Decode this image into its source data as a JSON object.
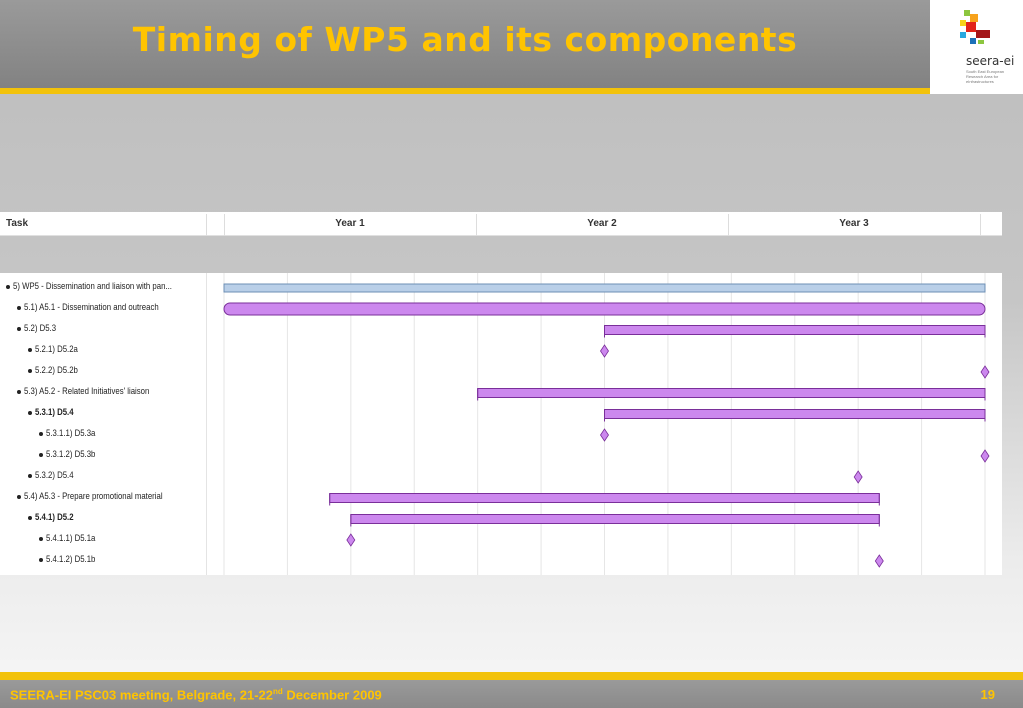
{
  "header": {
    "title": "Timing of WP5 and its components"
  },
  "logo": {
    "name": "seera-ei",
    "subtitle": "South East European Research Area for eInfrastructures"
  },
  "gantt": {
    "task_column_label": "Task",
    "years": [
      "Year 1",
      "Year 2",
      "Year 3"
    ],
    "tasks": [
      {
        "label": "5)  WP5 - Dissemination and liaison with pan...",
        "level": 0,
        "bold": false,
        "kind": "summary",
        "start": 0,
        "end": 36
      },
      {
        "label": "5.1)  A5.1 - Dissemination and outreach",
        "level": 1,
        "bold": false,
        "kind": "rounded",
        "start": 0,
        "end": 36
      },
      {
        "label": "5.2)  D5.3",
        "level": 1,
        "bold": false,
        "kind": "bar",
        "start": 18,
        "end": 36
      },
      {
        "label": "5.2.1)  D5.2a",
        "level": 2,
        "bold": false,
        "kind": "milestone",
        "at": 18
      },
      {
        "label": "5.2.2)  D5.2b",
        "level": 2,
        "bold": false,
        "kind": "milestone",
        "at": 36
      },
      {
        "label": "5.3)  A5.2 - Related Initiatives' liaison",
        "level": 1,
        "bold": false,
        "kind": "bar",
        "start": 12,
        "end": 36
      },
      {
        "label": "5.3.1)  D5.4",
        "level": 2,
        "bold": true,
        "kind": "bar",
        "start": 18,
        "end": 36
      },
      {
        "label": "5.3.1.1)  D5.3a",
        "level": 3,
        "bold": false,
        "kind": "milestone",
        "at": 18
      },
      {
        "label": "5.3.1.2)  D5.3b",
        "level": 3,
        "bold": false,
        "kind": "milestone",
        "at": 36
      },
      {
        "label": "5.3.2)  D5.4",
        "level": 2,
        "bold": false,
        "kind": "milestone",
        "at": 30
      },
      {
        "label": "5.4)  A5.3 - Prepare promotional material",
        "level": 1,
        "bold": false,
        "kind": "bar",
        "start": 5,
        "end": 31
      },
      {
        "label": "5.4.1)  D5.2",
        "level": 2,
        "bold": true,
        "kind": "bar",
        "start": 6,
        "end": 31
      },
      {
        "label": "5.4.1.1)  D5.1a",
        "level": 3,
        "bold": false,
        "kind": "milestone",
        "at": 6
      },
      {
        "label": "5.4.1.2)  D5.1b",
        "level": 3,
        "bold": false,
        "kind": "milestone",
        "at": 31
      }
    ],
    "colors": {
      "bar": "#cc88ee",
      "bar_border": "#7a2f9a",
      "summary": "#b9cfe8",
      "summary_border": "#6d8fb5",
      "grid": "#e6e6e6"
    }
  },
  "footer": {
    "text": "SEERA-EI  PSC03 meeting, Belgrade, 21-22",
    "text_sup": "nd",
    "text_tail": " December 2009",
    "page": "19"
  }
}
